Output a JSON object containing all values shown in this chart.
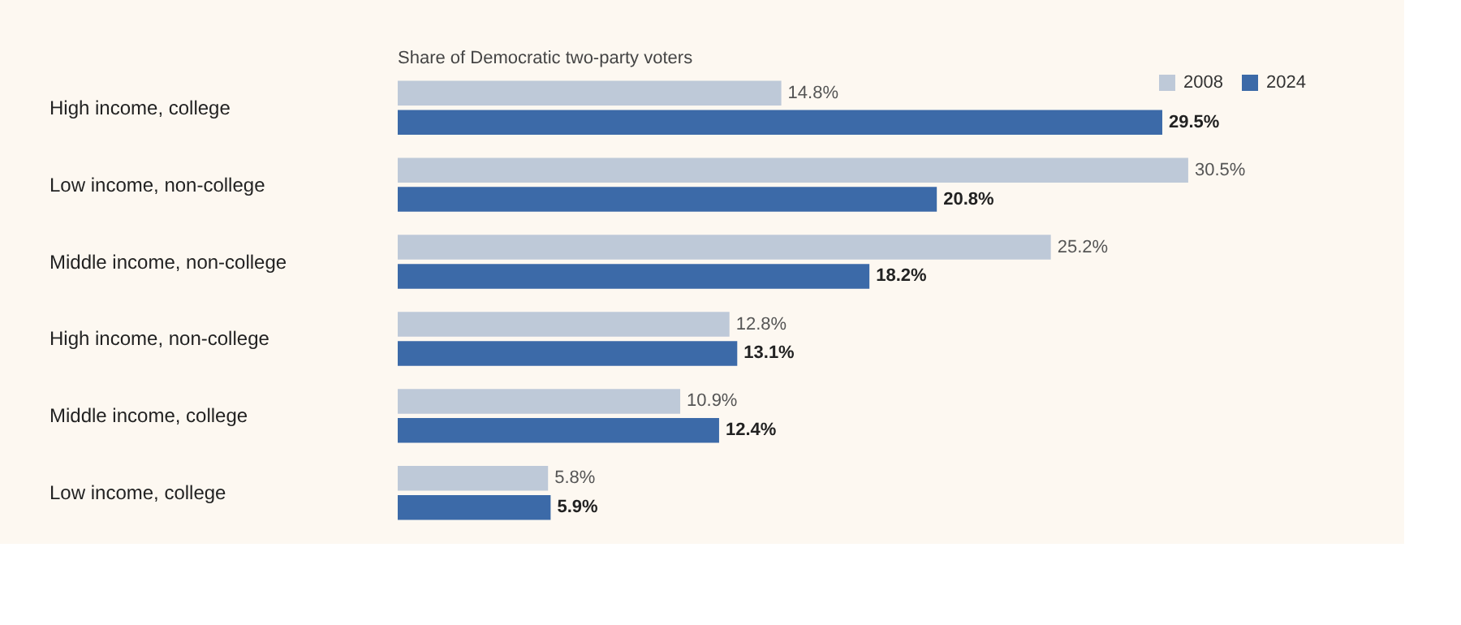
{
  "chart_data": {
    "type": "bar",
    "orientation": "horizontal",
    "title": "Share of Democratic two-party voters",
    "categories": [
      "High income, college",
      "Low income, non-college",
      "Middle income, non-college",
      "High income, non-college",
      "Middle income, college",
      "Low income, college"
    ],
    "series": [
      {
        "name": "2008",
        "color": "#bec9d8",
        "values": [
          14.8,
          30.5,
          25.2,
          12.8,
          10.9,
          5.8
        ],
        "value_labels": [
          "14.8%",
          "30.5%",
          "25.2%",
          "12.8%",
          "10.9%",
          "5.8%"
        ]
      },
      {
        "name": "2024",
        "color": "#3c6aa8",
        "values": [
          29.5,
          20.8,
          18.2,
          13.1,
          12.4,
          5.9
        ],
        "value_labels": [
          "29.5%",
          "20.8%",
          "18.2%",
          "13.1%",
          "12.4%",
          "5.9%"
        ]
      }
    ],
    "legend": "top right",
    "grid": false
  }
}
